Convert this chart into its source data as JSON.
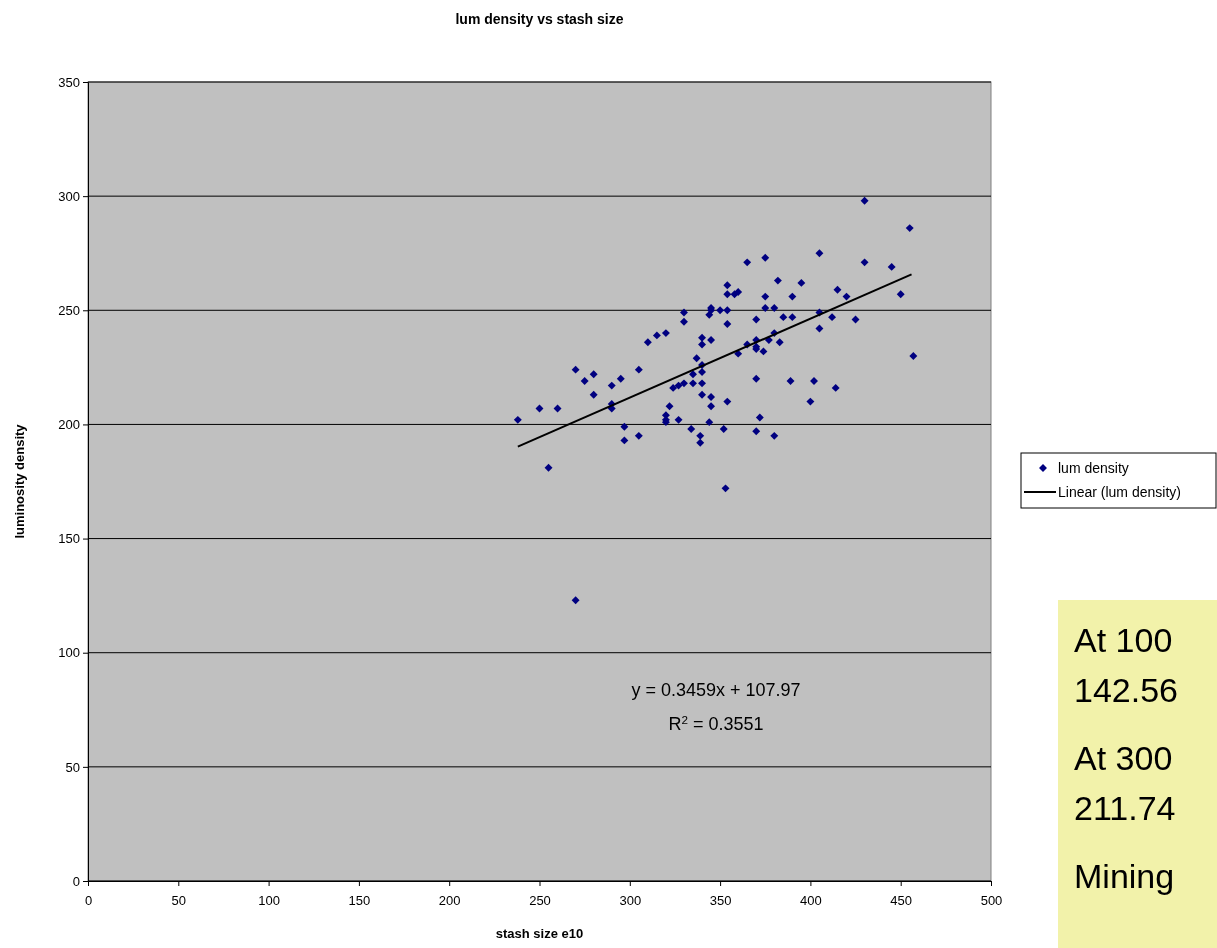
{
  "chart_data": {
    "type": "scatter",
    "title": "lum density vs stash size",
    "xlabel": "stash size e10",
    "ylabel": "luminosity density",
    "xlim": [
      0,
      500
    ],
    "xticks": [
      0,
      50,
      100,
      150,
      200,
      250,
      300,
      350,
      400,
      450,
      500
    ],
    "ylim": [
      0,
      350
    ],
    "yticks": [
      0,
      50,
      100,
      150,
      200,
      250,
      300,
      350
    ],
    "grid": "y",
    "legend": "right",
    "marker": "diamond",
    "series": [
      {
        "name": "lum density",
        "color": "#000080",
        "x": [
          238,
          250,
          260,
          255,
          270,
          275,
          280,
          280,
          270,
          290,
          290,
          290,
          295,
          297,
          297,
          305,
          305,
          310,
          315,
          320,
          322,
          320,
          320,
          320,
          324,
          327,
          330,
          327,
          330,
          330,
          334,
          335,
          335,
          337,
          340,
          340,
          340,
          340,
          340,
          340,
          339,
          339,
          344,
          345,
          345,
          345,
          344,
          345,
          345,
          350,
          352,
          353,
          354,
          354,
          354,
          354,
          354,
          358,
          360,
          430,
          455,
          405,
          375,
          365,
          430,
          445,
          382,
          395,
          415,
          375,
          390,
          420,
          450,
          375,
          380,
          370,
          385,
          390,
          405,
          412,
          425,
          405,
          380,
          377,
          370,
          370,
          370,
          365,
          360,
          374,
          383,
          457,
          370,
          389,
          402,
          414,
          400,
          372,
          370,
          380
        ],
        "values": [
          202,
          207,
          207,
          181,
          224,
          219,
          222,
          213,
          123,
          217,
          209,
          207,
          220,
          199,
          193,
          224,
          195,
          236,
          239,
          240,
          208,
          204,
          202,
          201,
          216,
          217,
          218,
          202,
          249,
          245,
          198,
          222,
          218,
          229,
          238,
          235,
          226,
          223,
          218,
          213,
          195,
          192,
          201,
          237,
          212,
          208,
          248,
          251,
          250,
          250,
          198,
          172,
          261,
          257,
          250,
          244,
          210,
          257,
          258,
          298,
          286,
          275,
          273,
          271,
          271,
          269,
          263,
          262,
          259,
          256,
          256,
          256,
          257,
          251,
          251,
          246,
          247,
          247,
          249,
          247,
          246,
          242,
          240,
          237,
          237,
          234,
          233,
          235,
          231,
          232,
          236,
          230,
          220,
          219,
          219,
          216,
          210,
          203,
          197,
          195
        ]
      },
      {
        "name": "Linear (lum density)",
        "color": "#000000",
        "type": "line",
        "marker": "none",
        "line_style": "solid",
        "x": [
          238,
          456
        ],
        "values": [
          190.3,
          265.7
        ]
      }
    ],
    "annotations": [
      "y = 0.3459x + 107.97",
      "R$^{2}$ = 0.3551",
      "At 100",
      "142.56",
      "At 300",
      "211.74",
      "Mining"
    ]
  }
}
